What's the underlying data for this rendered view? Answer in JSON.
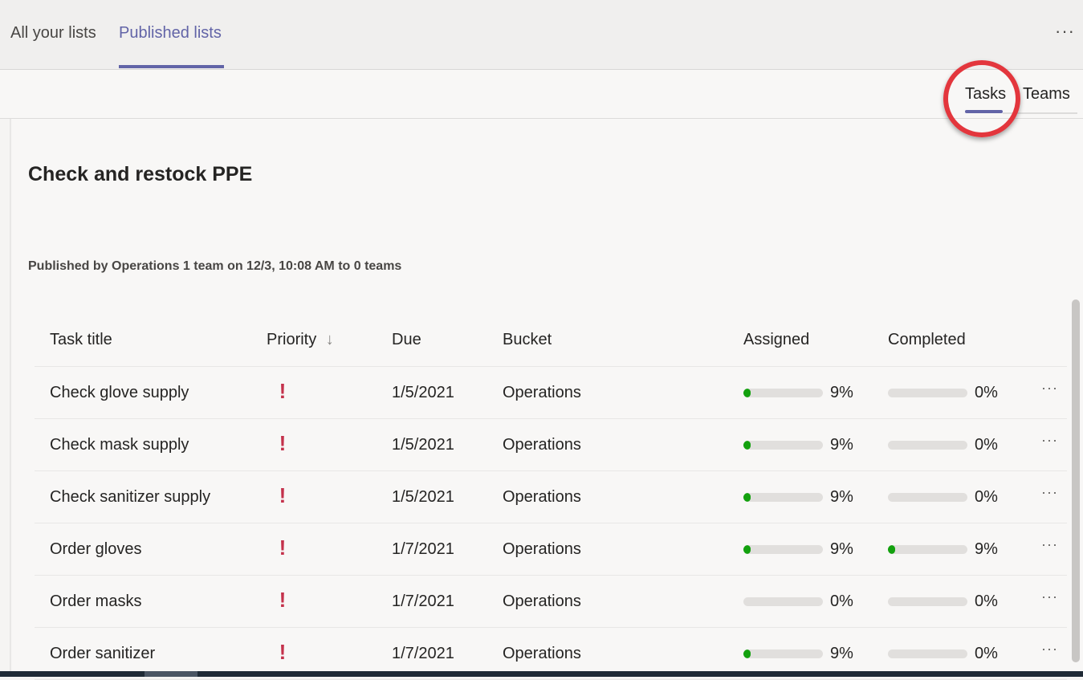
{
  "top_tabs": [
    {
      "label": "All your lists",
      "active": false
    },
    {
      "label": "Published lists",
      "active": true
    }
  ],
  "top_more": "···",
  "sub_tabs": [
    {
      "label": "Tasks",
      "active": true
    },
    {
      "label": "Teams",
      "active": false
    }
  ],
  "page_title": "Check and restock PPE",
  "published_text": "Published by Operations 1 team on 12/3, 10:08 AM to 0 teams",
  "columns": {
    "task_title": "Task title",
    "priority": "Priority",
    "priority_sort_icon": "↓",
    "due": "Due",
    "bucket": "Bucket",
    "assigned": "Assigned",
    "completed": "Completed"
  },
  "rows": [
    {
      "title": "Check glove supply",
      "priority": "!",
      "due": "1/5/2021",
      "bucket": "Operations",
      "assigned_pct": 9,
      "assigned": "9%",
      "completed_pct": 0,
      "completed": "0%",
      "more": "···"
    },
    {
      "title": "Check mask supply",
      "priority": "!",
      "due": "1/5/2021",
      "bucket": "Operations",
      "assigned_pct": 9,
      "assigned": "9%",
      "completed_pct": 0,
      "completed": "0%",
      "more": "···"
    },
    {
      "title": "Check sanitizer supply",
      "priority": "!",
      "due": "1/5/2021",
      "bucket": "Operations",
      "assigned_pct": 9,
      "assigned": "9%",
      "completed_pct": 0,
      "completed": "0%",
      "more": "···"
    },
    {
      "title": "Order gloves",
      "priority": "!",
      "due": "1/7/2021",
      "bucket": "Operations",
      "assigned_pct": 9,
      "assigned": "9%",
      "completed_pct": 9,
      "completed": "9%",
      "more": "···"
    },
    {
      "title": "Order masks",
      "priority": "!",
      "due": "1/7/2021",
      "bucket": "Operations",
      "assigned_pct": 0,
      "assigned": "0%",
      "completed_pct": 0,
      "completed": "0%",
      "more": "···"
    },
    {
      "title": "Order sanitizer",
      "priority": "!",
      "due": "1/7/2021",
      "bucket": "Operations",
      "assigned_pct": 9,
      "assigned": "9%",
      "completed_pct": 0,
      "completed": "0%",
      "more": "···"
    }
  ],
  "colors": {
    "accent": "#6264a7",
    "priority_urgent": "#c4314b",
    "progress_fill": "#13a10e",
    "highlight_ring": "#e3363d"
  }
}
